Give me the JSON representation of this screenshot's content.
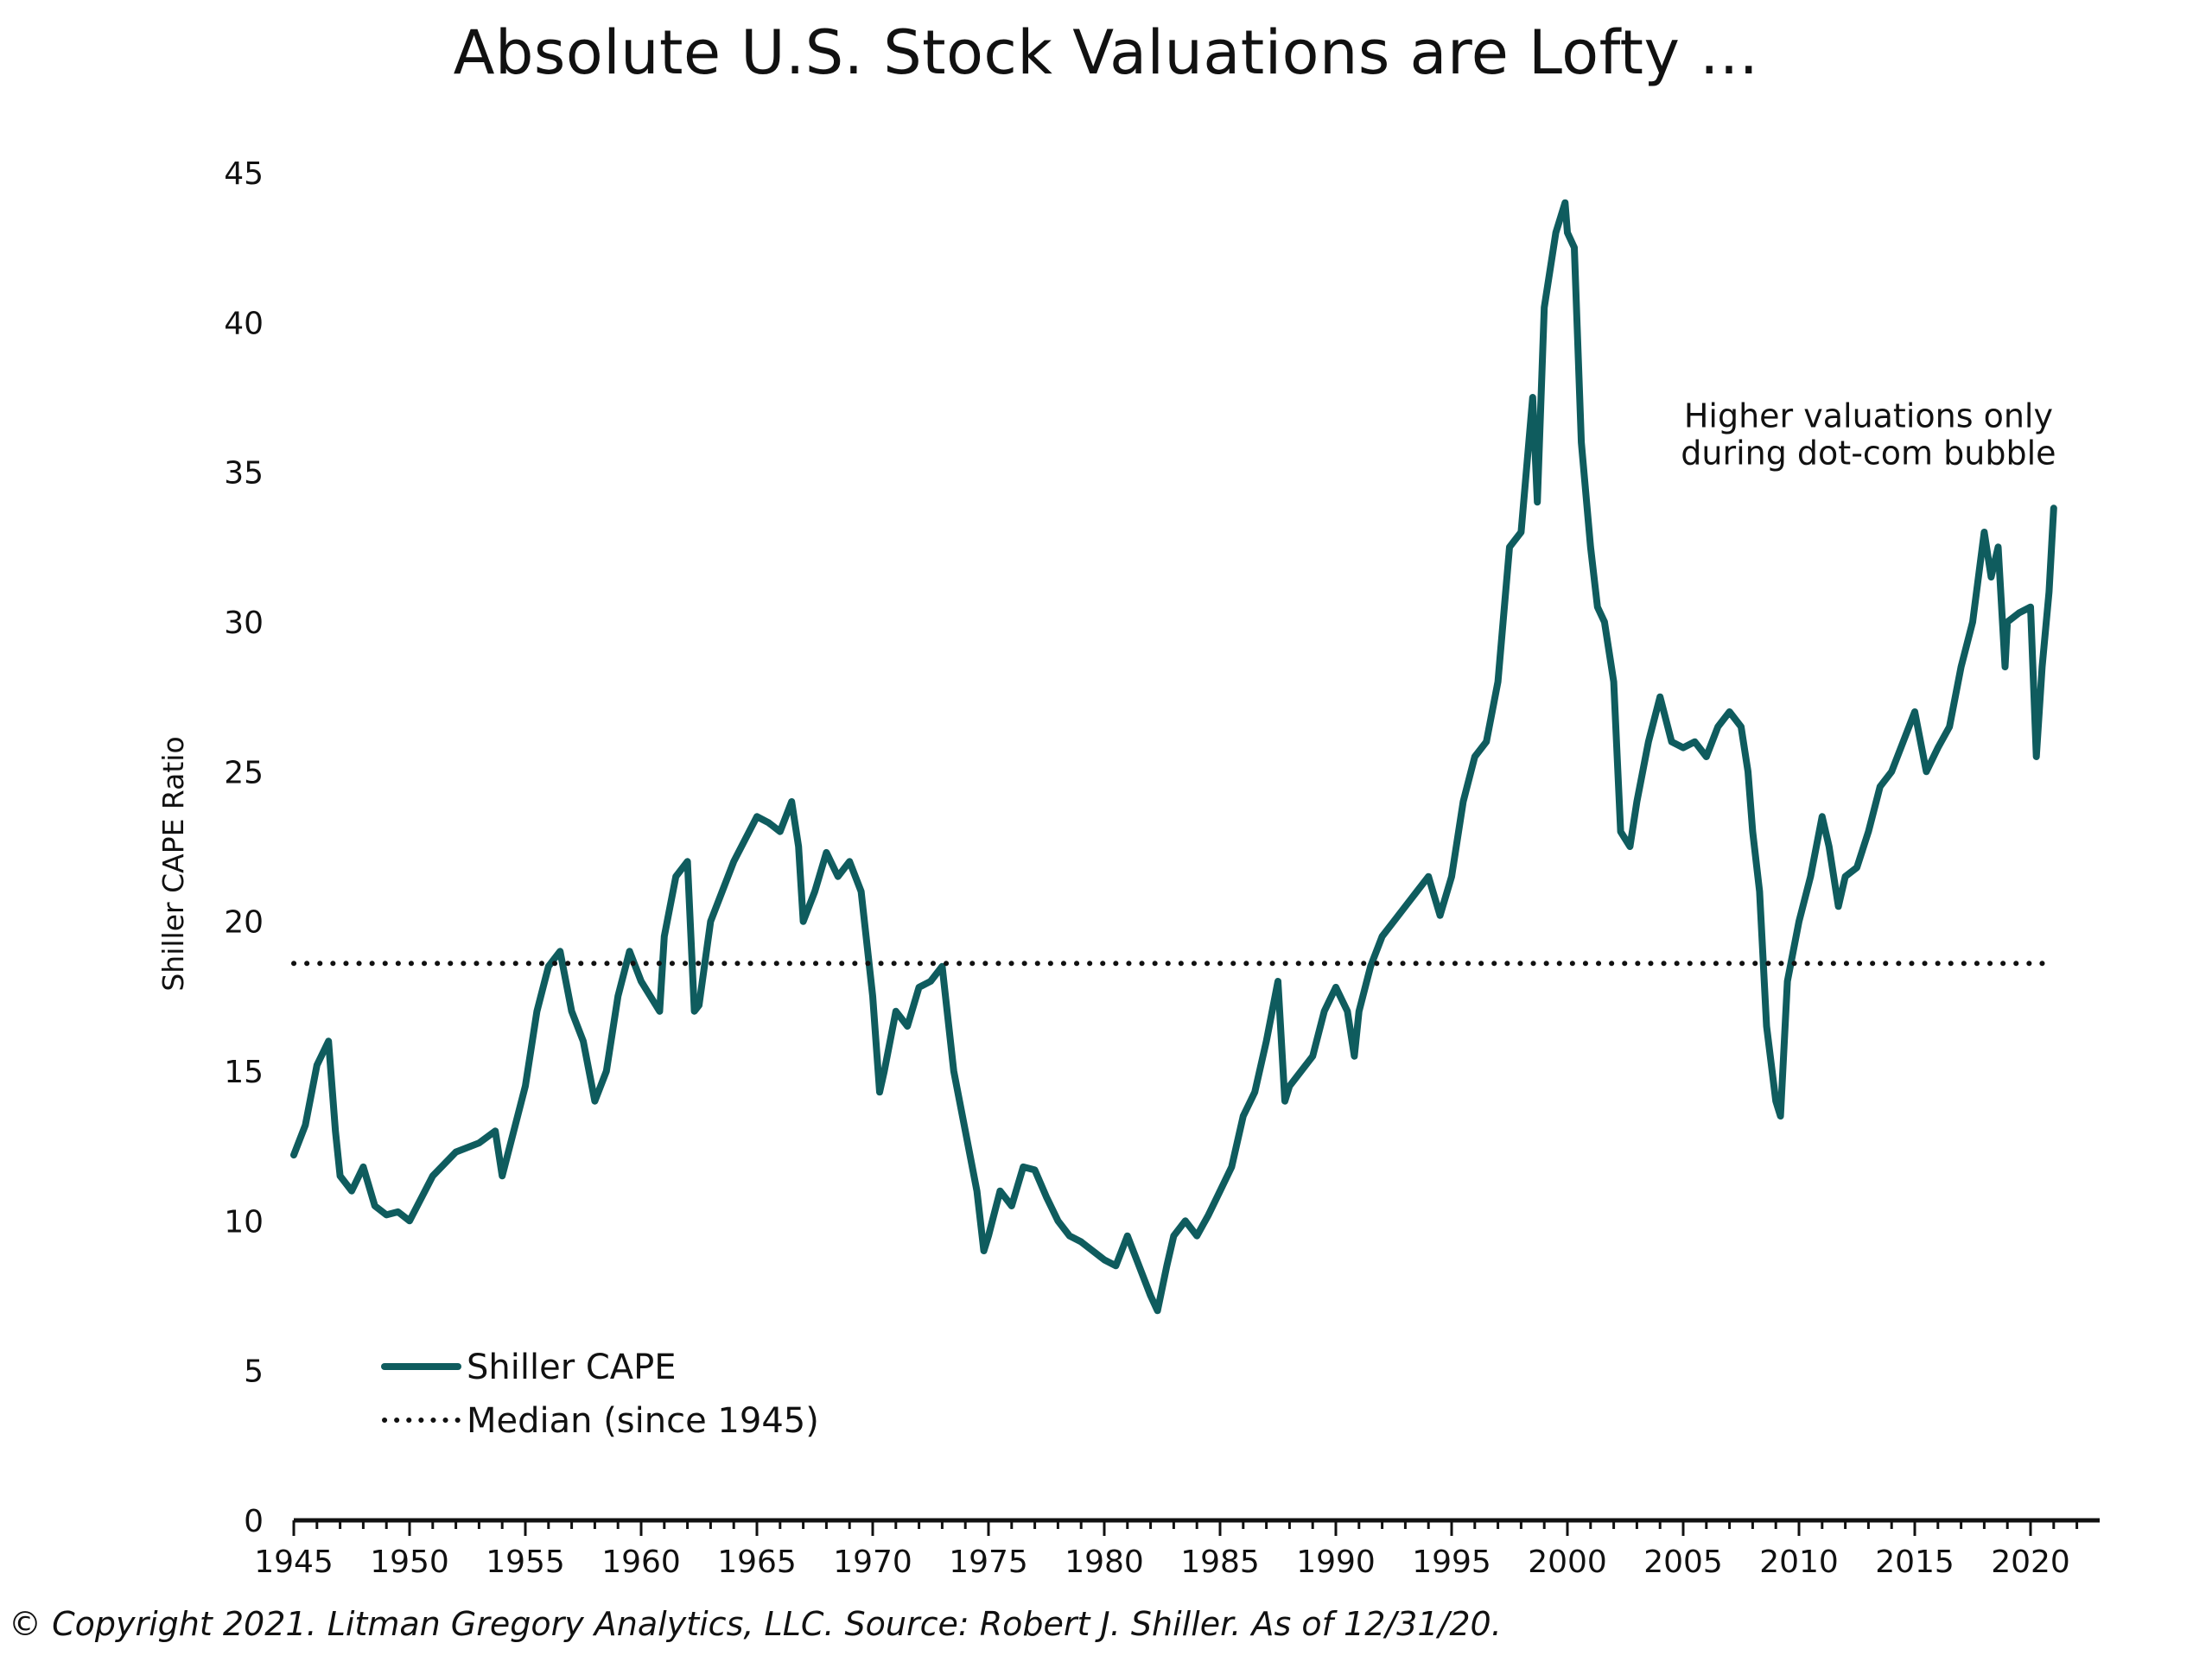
{
  "chart_data": {
    "type": "line",
    "title": "Absolute U.S. Stock Valuations are Lofty ...",
    "xlabel": "",
    "ylabel": "Shiller CAPE Ratio",
    "xlim": [
      1945,
      2023
    ],
    "ylim": [
      0,
      45
    ],
    "xticks": [
      1945,
      1950,
      1955,
      1960,
      1965,
      1970,
      1975,
      1980,
      1985,
      1990,
      1995,
      2000,
      2005,
      2010,
      2015,
      2020
    ],
    "yticks": [
      0,
      5,
      10,
      15,
      20,
      25,
      30,
      35,
      40,
      45
    ],
    "grid": false,
    "legend_position": "bottom-left",
    "series": [
      {
        "name": "Shiller CAPE",
        "color": "#0f5c5e",
        "style": "solid",
        "x": [
          1945,
          1945.5,
          1946,
          1946.5,
          1946.8,
          1947,
          1947.5,
          1948,
          1948.5,
          1949,
          1949.5,
          1950,
          1951,
          1952,
          1953,
          1953.7,
          1954,
          1955,
          1955.5,
          1956,
          1956.5,
          1957,
          1957.5,
          1958,
          1958.5,
          1959,
          1959.5,
          1960,
          1960.8,
          1961,
          1961.5,
          1962,
          1962.3,
          1962.5,
          1963,
          1963.5,
          1964,
          1965,
          1965.5,
          1966,
          1966.5,
          1966.8,
          1967,
          1967.5,
          1968,
          1968.5,
          1969,
          1969.5,
          1970,
          1970.3,
          1970.5,
          1971,
          1971.5,
          1972,
          1972.5,
          1973,
          1973.5,
          1974,
          1974.5,
          1974.8,
          1975,
          1975.5,
          1976,
          1976.5,
          1977,
          1977.5,
          1978,
          1978.5,
          1979,
          1979.5,
          1980,
          1980.5,
          1981,
          1981.5,
          1982,
          1982.3,
          1982.7,
          1983,
          1983.5,
          1984,
          1984.5,
          1985,
          1985.5,
          1986,
          1986.5,
          1987,
          1987.5,
          1987.8,
          1988,
          1988.5,
          1989,
          1989.5,
          1990,
          1990.5,
          1990.8,
          1991,
          1991.5,
          1992,
          1992.5,
          1993,
          1993.5,
          1994,
          1994.5,
          1995,
          1995.5,
          1996,
          1996.5,
          1997,
          1997.5,
          1998,
          1998.5,
          1998.7,
          1999,
          1999.5,
          1999.9,
          2000,
          2000.3,
          2000.6,
          2001,
          2001.3,
          2001.6,
          2002,
          2002.3,
          2002.7,
          2003,
          2003.5,
          2004,
          2004.5,
          2005,
          2005.5,
          2006,
          2006.5,
          2007,
          2007.5,
          2007.8,
          2008,
          2008.3,
          2008.6,
          2009,
          2009.2,
          2009.5,
          2010,
          2010.5,
          2011,
          2011.3,
          2011.7,
          2012,
          2012.5,
          2013,
          2013.5,
          2014,
          2014.5,
          2015,
          2015.5,
          2016,
          2016.5,
          2017,
          2017.5,
          2018,
          2018.3,
          2018.6,
          2018.9,
          2019,
          2019.5,
          2020,
          2020.25,
          2020.5,
          2020.8,
          2021
        ],
        "values": [
          12.2,
          13.2,
          15.2,
          16.0,
          13.0,
          11.5,
          11.0,
          11.8,
          10.5,
          10.2,
          10.3,
          10.0,
          11.5,
          12.3,
          12.6,
          13.0,
          11.5,
          14.5,
          17.0,
          18.5,
          19.0,
          17.0,
          16.0,
          14.0,
          15.0,
          17.5,
          19.0,
          18.0,
          17.0,
          19.5,
          21.5,
          22.0,
          17.0,
          17.2,
          20.0,
          21.0,
          22.0,
          23.5,
          23.3,
          23.0,
          24.0,
          22.5,
          20.0,
          21.0,
          22.3,
          21.5,
          22.0,
          21.0,
          17.5,
          14.3,
          15.0,
          17.0,
          16.5,
          17.8,
          18.0,
          18.5,
          15.0,
          13.0,
          11.0,
          9.0,
          9.5,
          11.0,
          10.5,
          11.8,
          11.7,
          10.8,
          10.0,
          9.5,
          9.3,
          9.0,
          8.7,
          8.5,
          9.5,
          8.5,
          7.5,
          7.0,
          8.5,
          9.5,
          10.0,
          9.5,
          10.2,
          11.0,
          11.8,
          13.5,
          14.3,
          16.0,
          18.0,
          14.0,
          14.5,
          15.0,
          15.5,
          17.0,
          17.8,
          17.0,
          15.5,
          17.0,
          18.5,
          19.5,
          20.0,
          20.5,
          21.0,
          21.5,
          20.2,
          21.5,
          24.0,
          25.5,
          26.0,
          28.0,
          32.5,
          33.0,
          37.5,
          34.0,
          40.5,
          43.0,
          44.0,
          43.0,
          42.5,
          36.0,
          32.5,
          30.5,
          30.0,
          28.0,
          23.0,
          22.5,
          24.0,
          26.0,
          27.5,
          26.0,
          25.8,
          26.0,
          25.5,
          26.5,
          27.0,
          26.5,
          25.0,
          23.0,
          21.0,
          16.5,
          14.0,
          13.5,
          18.0,
          20.0,
          21.5,
          23.5,
          22.5,
          20.5,
          21.5,
          21.8,
          23.0,
          24.5,
          25.0,
          26.0,
          27.0,
          25.0,
          25.8,
          26.5,
          28.5,
          30.0,
          33.0,
          31.5,
          32.5,
          28.5,
          30.0,
          30.3,
          30.5,
          25.5,
          28.5,
          31.0,
          33.8
        ]
      },
      {
        "name": "Median (since 1945)",
        "color": "#111111",
        "style": "dotted",
        "x": [
          1945,
          2021
        ],
        "values": [
          18.6,
          18.6
        ]
      }
    ],
    "annotations": [
      {
        "text": "Higher valuations only during dot-com bubble",
        "lines": [
          "Higher valuations only",
          "during dot-com bubble"
        ],
        "x": 2013,
        "y": 36.5
      }
    ]
  },
  "footer": "© Copyright 2021. Litman Gregory Analytics, LLC. Source: Robert J. Shiller. As of 12/31/20."
}
